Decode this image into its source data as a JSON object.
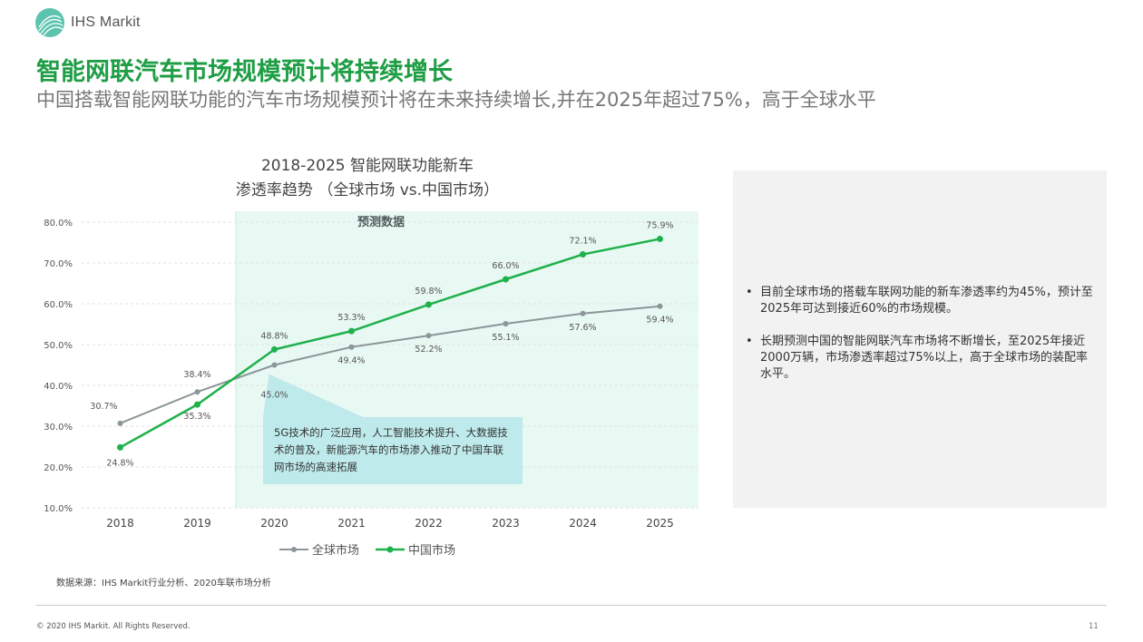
{
  "header": {
    "brand": "IHS Markit",
    "title": "智能网联汽车市场规模预计将持续增长",
    "subtitle": "中国搭载智能网联功能的汽车市场规模预计将在未来持续增长,并在2025年超过75%，高于全球水平"
  },
  "chart_data": {
    "type": "line",
    "title_line1": "2018-2025 智能网联功能新车",
    "title_line2": "渗透率趋势 （全球市场 vs.中国市场）",
    "categories": [
      "2018",
      "2019",
      "2020",
      "2021",
      "2022",
      "2023",
      "2024",
      "2025"
    ],
    "series": [
      {
        "name": "全球市场",
        "values": [
          30.7,
          38.4,
          45.0,
          49.4,
          52.2,
          55.1,
          57.6,
          59.4
        ],
        "labels": [
          "30.7%",
          "38.4%",
          "45.0%",
          "49.4%",
          "52.2%",
          "55.1%",
          "57.6%",
          "59.4%"
        ],
        "color": "#8c9699"
      },
      {
        "name": "中国市场",
        "values": [
          24.8,
          35.3,
          48.8,
          53.3,
          59.8,
          66.0,
          72.1,
          75.9
        ],
        "labels": [
          "24.8%",
          "35.3%",
          "48.8%",
          "53.3%",
          "59.8%",
          "66.0%",
          "72.1%",
          "75.9%"
        ],
        "color": "#1fb14b"
      }
    ],
    "y_ticks": [
      "10.0%",
      "20.0%",
      "30.0%",
      "40.0%",
      "50.0%",
      "60.0%",
      "70.0%",
      "80.0%"
    ],
    "ylim": [
      10,
      80
    ],
    "forecast_region_label": "预测数据",
    "forecast_region_start": "2020",
    "forecast_color": "#e8f8f3",
    "grid": true,
    "legend_position": "bottom"
  },
  "callout": {
    "text": "5G技术的广泛应用，人工智能技术提升、大数据技术的普及，新能源汽车的市场渗入推动了中国车联网市场的高速拓展"
  },
  "legend": {
    "global": "全球市场",
    "china": "中国市场"
  },
  "source": "数据来源：IHS Markit行业分析、2020车联市场分析",
  "side_panel": {
    "bullets": [
      "目前全球市场的搭载车联网功能的新车渗透率约为45%，预计至2025年可达到接近60%的市场规模。",
      "长期预测中国的智能网联汽车市场将不断增长，至2025年接近2000万辆，市场渗透率超过75%以上，高于全球市场的装配率水平。"
    ]
  },
  "footer": {
    "copyright": "© 2020 IHS Markit. All Rights Reserved.",
    "page": "11"
  },
  "colors": {
    "title_green": "#1f9e45",
    "china_line": "#1fb14b",
    "global_line": "#8c9699",
    "callout_bg": "#bfeaeb",
    "panel_bg": "#f2f2f2"
  }
}
